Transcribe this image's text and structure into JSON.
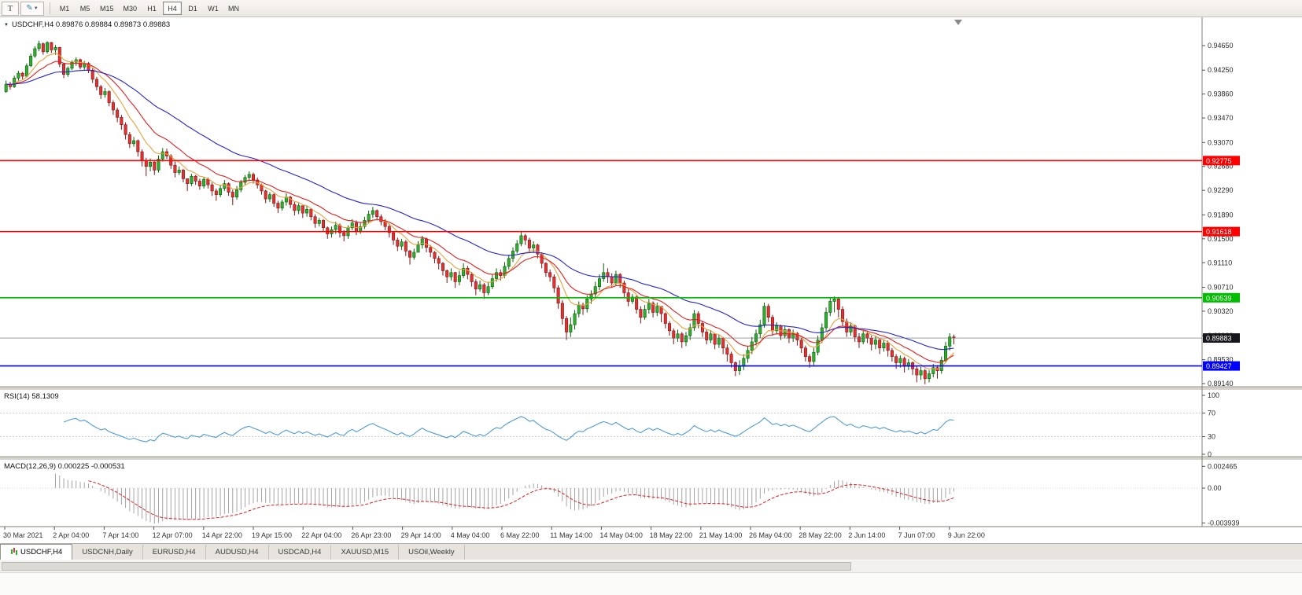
{
  "toolbar": {
    "timeframes": [
      "M1",
      "M5",
      "M15",
      "M30",
      "H1",
      "H4",
      "D1",
      "W1",
      "MN"
    ],
    "active": "H4",
    "icons": [
      "chart-properties-icon",
      "drawing-tools-icon",
      "chevron-down-icon"
    ]
  },
  "tabs": [
    {
      "label": "USDCHF,H4",
      "active": true
    },
    {
      "label": "USDCNH,Daily",
      "active": false
    },
    {
      "label": "EURUSD,H4",
      "active": false
    },
    {
      "label": "AUDUSD,H4",
      "active": false
    },
    {
      "label": "USDCAD,H4",
      "active": false
    },
    {
      "label": "XAUUSD,M15",
      "active": false
    },
    {
      "label": "USOil,Weekly",
      "active": false
    }
  ],
  "chart_data": {
    "type": "candlestick",
    "symbol": "USDCHF",
    "timeframe": "H4",
    "symbol_quote": "USDCHF,H4 0.89876 0.89884 0.89873 0.89883",
    "quote": {
      "open": "0.89876",
      "high": "0.89884",
      "low": "0.89873",
      "last": "0.89883"
    },
    "price_axis_labels": [
      "0.94650",
      "0.94250",
      "0.93860",
      "0.93470",
      "0.93070",
      "0.92680",
      "0.92290",
      "0.91890",
      "0.91500",
      "0.91110",
      "0.90710",
      "0.90320",
      "0.89920",
      "0.89530",
      "0.89140"
    ],
    "time_labels": [
      "30 Mar 2021",
      "2 Apr 04:00",
      "7 Apr 14:00",
      "12 Apr 07:00",
      "14 Apr 22:00",
      "19 Apr 15:00",
      "22 Apr 04:00",
      "26 Apr 23:00",
      "29 Apr 14:00",
      "4 May 04:00",
      "6 May 22:00",
      "11 May 14:00",
      "14 May 04:00",
      "18 May 22:00",
      "21 May 14:00",
      "26 May 04:00",
      "28 May 22:00",
      "2 Jun 14:00",
      "7 Jun 07:00",
      "9 Jun 22:00"
    ],
    "hlines": [
      {
        "price": 0.92775,
        "label": "0.92775",
        "color": "#ff0000"
      },
      {
        "price": 0.91618,
        "label": "0.91618",
        "color": "#ff0000"
      },
      {
        "price": 0.90539,
        "label": "0.90539",
        "color": "#00bf00"
      },
      {
        "price": 0.89427,
        "label": "0.89427",
        "color": "#0000ff"
      }
    ],
    "current": {
      "price": 0.89883,
      "label": "0.89883",
      "color": "#16161c"
    },
    "colors": {
      "up": "#2fae2f",
      "up_border": "#0c5c0c",
      "down": "#e23232",
      "down_border": "#7e1414",
      "rsi_line": "#4f9bd5",
      "macd_hist": "#9a9a9a",
      "macd_signal": "#e02020"
    },
    "moving_averages": [
      {
        "color": "#e8a23c",
        "period": 8
      },
      {
        "color": "#e02020",
        "period": 16
      },
      {
        "color": "#2424cc",
        "period": 40
      }
    ],
    "rsi": {
      "label": "RSI(14) 58.1309",
      "period": 14,
      "value": 58.1309,
      "axis_labels": [
        "100",
        "70",
        "30",
        "0"
      ],
      "axis_values": [
        100,
        70,
        30,
        0
      ],
      "levels": [
        70,
        30
      ]
    },
    "macd": {
      "label": "MACD(12,26,9) 0.000225 -0.000531",
      "values": [
        0.000225,
        -0.000531
      ],
      "axis_labels": [
        "0.002465",
        "0.00",
        "-0.003939"
      ],
      "axis_values": [
        0.002465,
        0,
        -0.003939
      ]
    },
    "candles": {
      "scale": 10000,
      "first_open": 9390,
      "hlc": [
        9408,
        9388,
        9402,
        9406,
        9393,
        9398,
        9416,
        9396,
        9412,
        9424,
        9408,
        9420,
        9422,
        9410,
        9415,
        9436,
        9413,
        9432,
        9452,
        9430,
        9448,
        9464,
        9445,
        9460,
        9473,
        9456,
        9468,
        9470,
        9450,
        9455,
        9472,
        9452,
        9470,
        9471,
        9453,
        9458,
        9466,
        9450,
        9462,
        9463,
        9430,
        9435,
        9437,
        9412,
        9418,
        9431,
        9414,
        9428,
        9441,
        9425,
        9438,
        9446,
        9432,
        9442,
        9444,
        9426,
        9430,
        9440,
        9424,
        9436,
        9438,
        9420,
        9425,
        9428,
        9404,
        9410,
        9414,
        9392,
        9398,
        9401,
        9378,
        9385,
        9396,
        9380,
        9390,
        9392,
        9366,
        9372,
        9376,
        9352,
        9360,
        9364,
        9340,
        9348,
        9352,
        9328,
        9336,
        9340,
        9312,
        9320,
        9324,
        9298,
        9305,
        9316,
        9300,
        9310,
        9312,
        9284,
        9292,
        9296,
        9268,
        9278,
        9282,
        9252,
        9268,
        9281,
        9260,
        9275,
        9278,
        9254,
        9262,
        9286,
        9258,
        9280,
        9298,
        9276,
        9292,
        9297,
        9280,
        9285,
        9288,
        9264,
        9270,
        9276,
        9250,
        9258,
        9268,
        9254,
        9262,
        9264,
        9242,
        9248,
        9246,
        9228,
        9240,
        9256,
        9236,
        9252,
        9254,
        9238,
        9244,
        9248,
        9230,
        9236,
        9251,
        9232,
        9247,
        9250,
        9232,
        9238,
        9242,
        9220,
        9228,
        9232,
        9212,
        9222,
        9238,
        9218,
        9232,
        9246,
        9228,
        9240,
        9242,
        9220,
        9226,
        9230,
        9205,
        9218,
        9236,
        9214,
        9230,
        9246,
        9226,
        9242,
        9254,
        9238,
        9250,
        9260,
        9244,
        9255,
        9258,
        9240,
        9246,
        9250,
        9232,
        9238,
        9240,
        9222,
        9228,
        9230,
        9208,
        9215,
        9226,
        9210,
        9222,
        9224,
        9202,
        9208,
        9212,
        9192,
        9200,
        9214,
        9196,
        9210,
        9224,
        9204,
        9218,
        9220,
        9200,
        9206,
        9210,
        9188,
        9196,
        9208,
        9190,
        9204,
        9200,
        9184,
        9192,
        9204,
        9186,
        9198,
        9200,
        9180,
        9186,
        9190,
        9168,
        9175,
        9184,
        9170,
        9180,
        9182,
        9162,
        9168,
        9170,
        9150,
        9158,
        9170,
        9152,
        9165,
        9178,
        9158,
        9172,
        9175,
        9152,
        9160,
        9164,
        9146,
        9155,
        9172,
        9150,
        9168,
        9182,
        9164,
        9176,
        9180,
        9156,
        9162,
        9176,
        9158,
        9170,
        9186,
        9166,
        9180,
        9196,
        9176,
        9190,
        9202,
        9184,
        9196,
        9198,
        9180,
        9186,
        9190,
        9172,
        9178,
        9182,
        9164,
        9170,
        9174,
        9152,
        9160,
        9162,
        9140,
        9148,
        9152,
        9130,
        9138,
        9150,
        9132,
        9145,
        9148,
        9122,
        9130,
        9132,
        9108,
        9120,
        9134,
        9116,
        9128,
        9146,
        9128,
        9140,
        9155,
        9134,
        9150,
        9152,
        9128,
        9136,
        9140,
        9120,
        9128,
        9130,
        9110,
        9118,
        9122,
        9100,
        9110,
        9112,
        9090,
        9098,
        9100,
        9078,
        9088,
        9102,
        9082,
        9095,
        9096,
        9070,
        9080,
        9098,
        9074,
        9090,
        9110,
        9086,
        9102,
        9106,
        9084,
        9092,
        9096,
        9072,
        9080,
        9084,
        9058,
        9068,
        9082,
        9064,
        9075,
        9078,
        9052,
        9062,
        9080,
        9058,
        9072,
        9092,
        9068,
        9085,
        9102,
        9080,
        9095,
        9100,
        9082,
        9090,
        9112,
        9086,
        9105,
        9124,
        9100,
        9118,
        9136,
        9112,
        9130,
        9148,
        9126,
        9142,
        9162,
        9138,
        9155,
        9158,
        9140,
        9148,
        9152,
        9128,
        9135,
        9146,
        9128,
        9140,
        9142,
        9118,
        9125,
        9128,
        9102,
        9110,
        9112,
        9088,
        9095,
        9100,
        9080,
        9088,
        9092,
        9062,
        9070,
        9074,
        9036,
        9045,
        9050,
        9010,
        9020,
        9024,
        8985,
        8998,
        9022,
        8990,
        9010,
        9034,
        9002,
        9028,
        9048,
        9022,
        9042,
        9046,
        9026,
        9036,
        9058,
        9030,
        9052,
        9066,
        9044,
        9060,
        9080,
        9054,
        9072,
        9092,
        9066,
        9085,
        9110,
        9080,
        9095,
        9102,
        9078,
        9088,
        9094,
        9070,
        9078,
        9098,
        9074,
        9092,
        9094,
        9070,
        9078,
        9082,
        9054,
        9062,
        9068,
        9040,
        9048,
        9060,
        9044,
        9055,
        9058,
        9028,
        9035,
        9040,
        9012,
        9022,
        9042,
        9018,
        9035,
        9052,
        9028,
        9045,
        9048,
        9022,
        9030,
        9046,
        9024,
        9040,
        9036,
        9014,
        9028,
        9030,
        9004,
        9012,
        9016,
        8992,
        9000,
        9004,
        8978,
        8988,
        9002,
        8982,
        8995,
        8998,
        8972,
        8982,
        8998,
        8975,
        8992,
        9012,
        8985,
        9005,
        9034,
        9000,
        9028,
        9032,
        9004,
        9012,
        9016,
        8990,
        8998,
        9002,
        8978,
        8985,
        9000,
        8980,
        8995,
        8996,
        8970,
        8978,
        8994,
        8972,
        8988,
        8990,
        8962,
        8972,
        8978,
        8950,
        8962,
        8966,
        8940,
        8948,
        8950,
        8926,
        8935,
        8952,
        8928,
        8942,
        8962,
        8936,
        8955,
        8975,
        8948,
        8968,
        8990,
        8962,
        8982,
        9002,
        8976,
        8995,
        9018,
        8988,
        9010,
        9046,
        9005,
        9040,
        9044,
        9014,
        9022,
        9026,
        8992,
        9000,
        9014,
        8994,
        9008,
        9010,
        8985,
        8992,
        9008,
        8988,
        9002,
        9004,
        8980,
        8988,
        9002,
        8982,
        8996,
        8998,
        8976,
        8985,
        8988,
        8964,
        8972,
        8976,
        8950,
        8958,
        8962,
        8940,
        8950,
        8972,
        8944,
        8965,
        8992,
        8960,
        8985,
        9012,
        8980,
        9005,
        9038,
        9000,
        9030,
        9054,
        9024,
        9048,
        9056,
        9030,
        9052,
        9054,
        9022,
        9035,
        9040,
        9008,
        9015,
        9020,
        8990,
        8998,
        9014,
        8992,
        9008,
        9010,
        8982,
        8990,
        8996,
        8972,
        8982,
        9000,
        8978,
        8995,
        9000,
        8980,
        8988,
        8992,
        8968,
        8978,
        8992,
        8970,
        8985,
        8988,
        8962,
        8972,
        8986,
        8966,
        8980,
        8984,
        8958,
        8968,
        8972,
        8950,
        8958,
        8962,
        8938,
        8948,
        8960,
        8940,
        8955,
        8958,
        8932,
        8942,
        8954,
        8936,
        8948,
        8950,
        8928,
        8938,
        8942,
        8916,
        8928,
        8941,
        8920,
        8935,
        8938,
        8913,
        8922,
        8936,
        8916,
        8930,
        8946,
        8924,
        8940,
        8944,
        8922,
        8935,
        8958,
        8930,
        8952,
        8982,
        8948,
        8975,
        8996,
        8968,
        8990,
        8994,
        8978,
        8988.3
      ]
    }
  }
}
